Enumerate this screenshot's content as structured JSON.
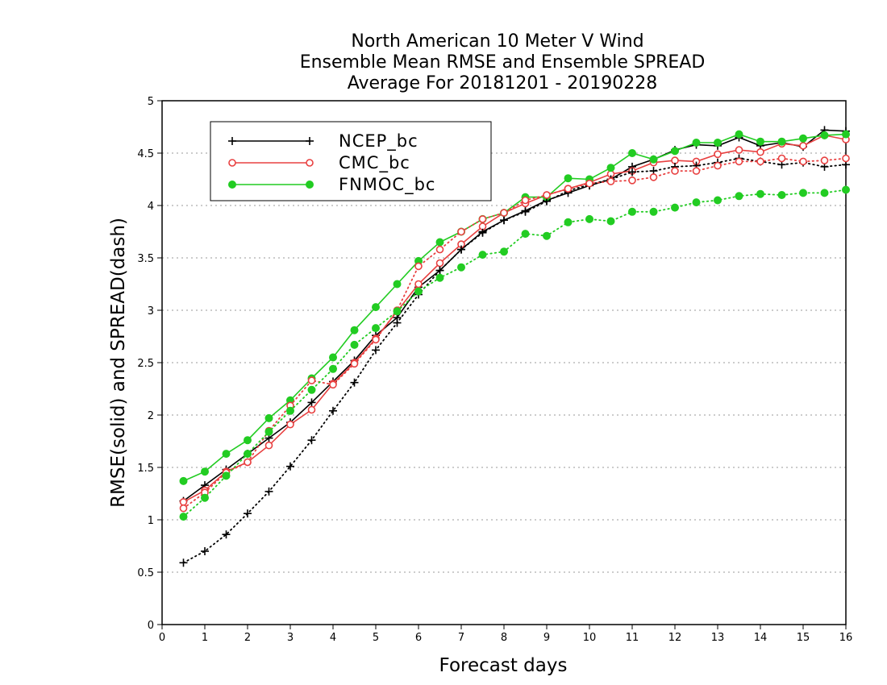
{
  "chart_data": {
    "type": "line",
    "title": [
      "North American 10 Meter V Wind",
      "Ensemble Mean RMSE and Ensemble SPREAD",
      "Average For 20181201 - 20190228"
    ],
    "xlabel": "Forecast days",
    "ylabel": "RMSE(solid) and SPREAD(dash)",
    "xlim": [
      0,
      16
    ],
    "ylim": [
      0,
      5
    ],
    "xticks": [
      0,
      1,
      2,
      3,
      4,
      5,
      6,
      7,
      8,
      9,
      10,
      11,
      12,
      13,
      14,
      15,
      16
    ],
    "yticks": [
      0,
      0.5,
      1,
      1.5,
      2,
      2.5,
      3,
      3.5,
      4,
      4.5,
      5
    ],
    "grid": "y-dotted",
    "legend_position": "top-left",
    "x": [
      0.5,
      1,
      1.5,
      2,
      2.5,
      3,
      3.5,
      4,
      4.5,
      5,
      5.5,
      6,
      6.5,
      7,
      7.5,
      8,
      8.5,
      9,
      9.5,
      10,
      10.5,
      11,
      11.5,
      12,
      12.5,
      13,
      13.5,
      14,
      14.5,
      15,
      15.5,
      16
    ],
    "series": [
      {
        "name": "NCEP_bc",
        "kind": "rmse",
        "style": "solid",
        "marker": "plus",
        "color": "#000000",
        "values": [
          1.18,
          1.33,
          1.48,
          1.63,
          1.78,
          1.93,
          2.12,
          2.32,
          2.52,
          2.76,
          2.93,
          3.22,
          3.38,
          3.58,
          3.75,
          3.86,
          3.95,
          4.05,
          4.12,
          4.19,
          4.25,
          4.37,
          4.44,
          4.53,
          4.58,
          4.57,
          4.65,
          4.57,
          4.6,
          4.56,
          4.72,
          4.71
        ]
      },
      {
        "name": "CMC_bc",
        "kind": "rmse",
        "style": "solid",
        "marker": "open-circle",
        "color": "#e84040",
        "values": [
          1.17,
          1.28,
          1.46,
          1.55,
          1.71,
          1.91,
          2.05,
          2.3,
          2.5,
          2.73,
          2.99,
          3.25,
          3.45,
          3.63,
          3.8,
          3.93,
          4.02,
          4.1,
          4.16,
          4.22,
          4.3,
          4.33,
          4.41,
          4.43,
          4.42,
          4.49,
          4.53,
          4.51,
          4.59,
          4.57,
          4.67,
          4.63
        ]
      },
      {
        "name": "FNMOC_bc",
        "kind": "rmse",
        "style": "solid",
        "marker": "filled-circle",
        "color": "#22cc22",
        "values": [
          1.37,
          1.46,
          1.63,
          1.76,
          1.97,
          2.14,
          2.35,
          2.55,
          2.81,
          3.03,
          3.25,
          3.47,
          3.65,
          3.75,
          3.87,
          3.93,
          4.08,
          4.08,
          4.26,
          4.25,
          4.36,
          4.5,
          4.44,
          4.52,
          4.6,
          4.6,
          4.68,
          4.61,
          4.61,
          4.64,
          4.67,
          4.68
        ]
      },
      {
        "name": "NCEP_bc",
        "kind": "spread",
        "style": "dotted",
        "marker": "plus",
        "color": "#000000",
        "values": [
          0.59,
          0.7,
          0.86,
          1.06,
          1.27,
          1.51,
          1.76,
          2.04,
          2.31,
          2.62,
          2.88,
          3.15,
          3.38,
          3.58,
          3.74,
          3.86,
          3.94,
          4.04,
          4.14,
          4.2,
          4.25,
          4.32,
          4.33,
          4.37,
          4.38,
          4.41,
          4.45,
          4.42,
          4.39,
          4.41,
          4.37,
          4.39
        ]
      },
      {
        "name": "CMC_bc",
        "kind": "spread",
        "style": "dotted",
        "marker": "open-circle",
        "color": "#e84040",
        "values": [
          1.11,
          1.26,
          1.45,
          1.55,
          1.85,
          2.09,
          2.33,
          2.29,
          2.49,
          2.72,
          3.0,
          3.42,
          3.58,
          3.75,
          3.87,
          3.93,
          4.05,
          4.1,
          4.16,
          4.21,
          4.23,
          4.24,
          4.27,
          4.33,
          4.33,
          4.38,
          4.42,
          4.42,
          4.45,
          4.42,
          4.43,
          4.45
        ]
      },
      {
        "name": "FNMOC_bc",
        "kind": "spread",
        "style": "dotted",
        "marker": "filled-circle",
        "color": "#22cc22",
        "values": [
          1.03,
          1.21,
          1.42,
          1.63,
          1.84,
          2.04,
          2.24,
          2.44,
          2.67,
          2.83,
          2.99,
          3.18,
          3.31,
          3.41,
          3.53,
          3.56,
          3.73,
          3.71,
          3.84,
          3.87,
          3.85,
          3.94,
          3.94,
          3.98,
          4.03,
          4.05,
          4.09,
          4.11,
          4.1,
          4.12,
          4.12,
          4.15
        ]
      }
    ],
    "legend": [
      {
        "label": "NCEP_bc",
        "marker": "plus",
        "color": "#000000"
      },
      {
        "label": "CMC_bc",
        "marker": "open-circle",
        "color": "#e84040"
      },
      {
        "label": "FNMOC_bc",
        "marker": "filled-circle",
        "color": "#22cc22"
      }
    ]
  }
}
